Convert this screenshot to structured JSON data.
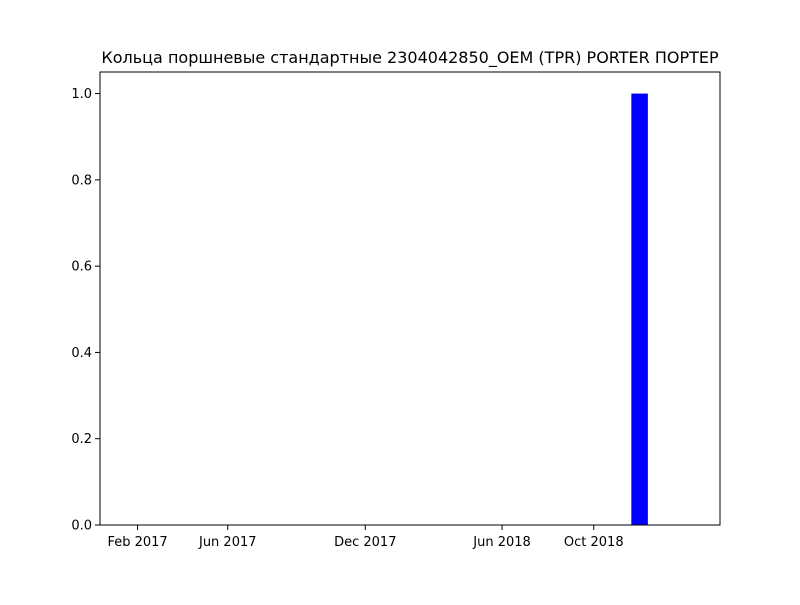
{
  "chart_data": {
    "type": "bar",
    "title": "Кольца поршневые стандартные 2304042850_OEM (TPR) PORTER ПОРТЕР",
    "xlabel": "",
    "ylabel": "",
    "x_axis": "date",
    "x": [
      "2018-12-01"
    ],
    "values": [
      1
    ],
    "xlim": [
      "2016-12-13",
      "2019-03-18"
    ],
    "ylim": [
      0,
      1.05
    ],
    "yticks": [
      0.0,
      0.2,
      0.4,
      0.6,
      0.8,
      1.0
    ],
    "ytick_labels": [
      "0.0",
      "0.2",
      "0.4",
      "0.6",
      "0.8",
      "1.0"
    ],
    "xticks": [
      "2017-02-01",
      "2017-06-01",
      "2017-12-01",
      "2018-06-01",
      "2018-10-01"
    ],
    "xtick_labels": [
      "Feb 2017",
      "Jun 2017",
      "Dec 2017",
      "Jun 2018",
      "Oct 2018"
    ],
    "bar_color": "#0000ff",
    "grid": false,
    "legend": "none"
  }
}
